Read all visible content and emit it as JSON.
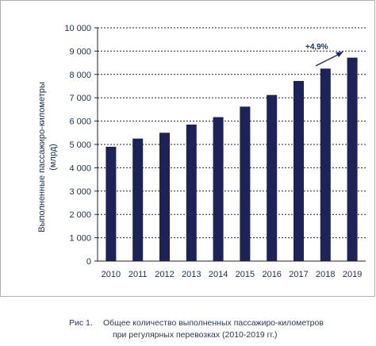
{
  "chart_data": {
    "type": "bar",
    "categories": [
      "2010",
      "2011",
      "2012",
      "2013",
      "2014",
      "2015",
      "2016",
      "2017",
      "2018",
      "2019"
    ],
    "values": [
      4900,
      5250,
      5500,
      5850,
      6170,
      6620,
      7120,
      7720,
      8250,
      8720
    ],
    "ylabel": "Выполненные пассажиро-километры (млрд)",
    "ylabel_lines": [
      "Выполненные пассажиро-километры",
      "(млрд)"
    ],
    "ylim": [
      0,
      10000
    ],
    "yticks": [
      "0",
      "1 000",
      "2 000",
      "3 000",
      "4 000",
      "5 000",
      "6 000",
      "7 000",
      "8 000",
      "9 000",
      "10 000"
    ],
    "grid": "horizontal dotted",
    "bar_color": "#1b2359",
    "annotation": "+4,9%"
  },
  "caption": {
    "number": "Рис 1.",
    "line1": "Общее количество выполненных пассажиро-километров",
    "line2": "при регулярных перевозках (2010-2019 гг.)"
  }
}
